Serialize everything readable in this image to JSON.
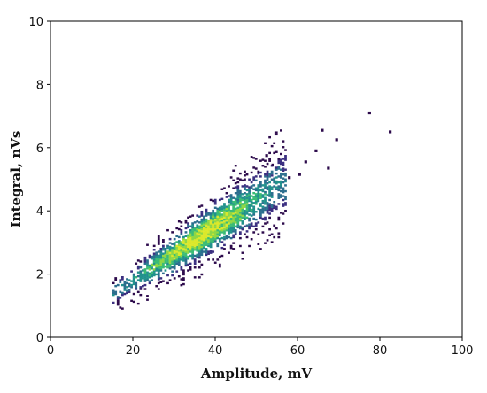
{
  "chart_data": {
    "type": "heatmap",
    "title": "",
    "xlabel": "Amplitude, mV",
    "ylabel": "Integral, nVs",
    "xlim": [
      0,
      100
    ],
    "ylim": [
      0,
      10
    ],
    "xticks": [
      {
        "value": 0,
        "label": "0"
      },
      {
        "value": 20,
        "label": "20"
      },
      {
        "value": 40,
        "label": "40"
      },
      {
        "value": 60,
        "label": "60"
      },
      {
        "value": 80,
        "label": "80"
      },
      {
        "value": 100,
        "label": "100"
      }
    ],
    "yticks": [
      {
        "value": 0,
        "label": "0"
      },
      {
        "value": 2,
        "label": "2"
      },
      {
        "value": 4,
        "label": "4"
      },
      {
        "value": 6,
        "label": "6"
      },
      {
        "value": 8,
        "label": "8"
      },
      {
        "value": 10,
        "label": "10"
      }
    ],
    "grid": false,
    "colormap": [
      "#2c0a4b",
      "#3b2f80",
      "#2c6e8e",
      "#21918c",
      "#3bbc75",
      "#8fd744",
      "#dbe82a"
    ],
    "density_band": {
      "x_range": [
        15,
        57
      ],
      "line_start": [
        16,
        1.45
      ],
      "line_end": [
        56,
        4.85
      ],
      "peak_x": 36,
      "peak_y": 3.15
    },
    "outliers": [
      {
        "x": 66.0,
        "y": 6.55
      },
      {
        "x": 69.5,
        "y": 6.25
      },
      {
        "x": 77.5,
        "y": 7.1
      },
      {
        "x": 82.5,
        "y": 6.5
      },
      {
        "x": 67.5,
        "y": 5.35
      },
      {
        "x": 64.5,
        "y": 5.9
      },
      {
        "x": 62.0,
        "y": 5.55
      },
      {
        "x": 60.5,
        "y": 5.15
      },
      {
        "x": 58.0,
        "y": 5.05
      },
      {
        "x": 54.0,
        "y": 5.45
      },
      {
        "x": 52.5,
        "y": 5.75
      }
    ]
  }
}
